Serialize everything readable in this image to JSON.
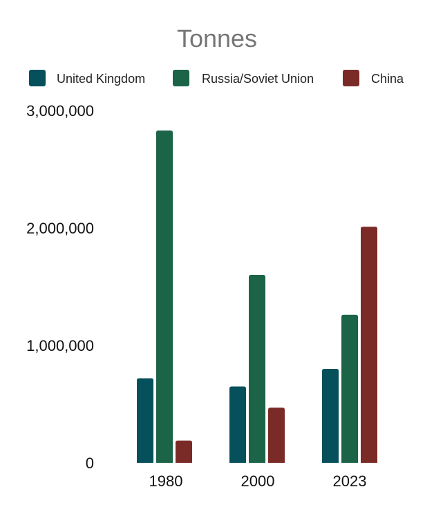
{
  "chart_data": {
    "type": "bar",
    "title": "Tonnes",
    "xlabel": "",
    "ylabel": "",
    "categories": [
      "1980",
      "2000",
      "2023"
    ],
    "series": [
      {
        "name": "United Kingdom",
        "color": "#06505c",
        "values": [
          720000,
          650000,
          800000
        ]
      },
      {
        "name": "Russia/Soviet Union",
        "color": "#1b6448",
        "values": [
          2830000,
          1600000,
          1260000
        ]
      },
      {
        "name": "China",
        "color": "#7b2b27",
        "values": [
          190000,
          470000,
          2010000
        ]
      }
    ],
    "yticks": [
      "0",
      "1,000,000",
      "2,000,000",
      "3,000,000"
    ],
    "ylim": [
      0,
      3000000
    ],
    "legend_position": "top",
    "grid": false
  }
}
